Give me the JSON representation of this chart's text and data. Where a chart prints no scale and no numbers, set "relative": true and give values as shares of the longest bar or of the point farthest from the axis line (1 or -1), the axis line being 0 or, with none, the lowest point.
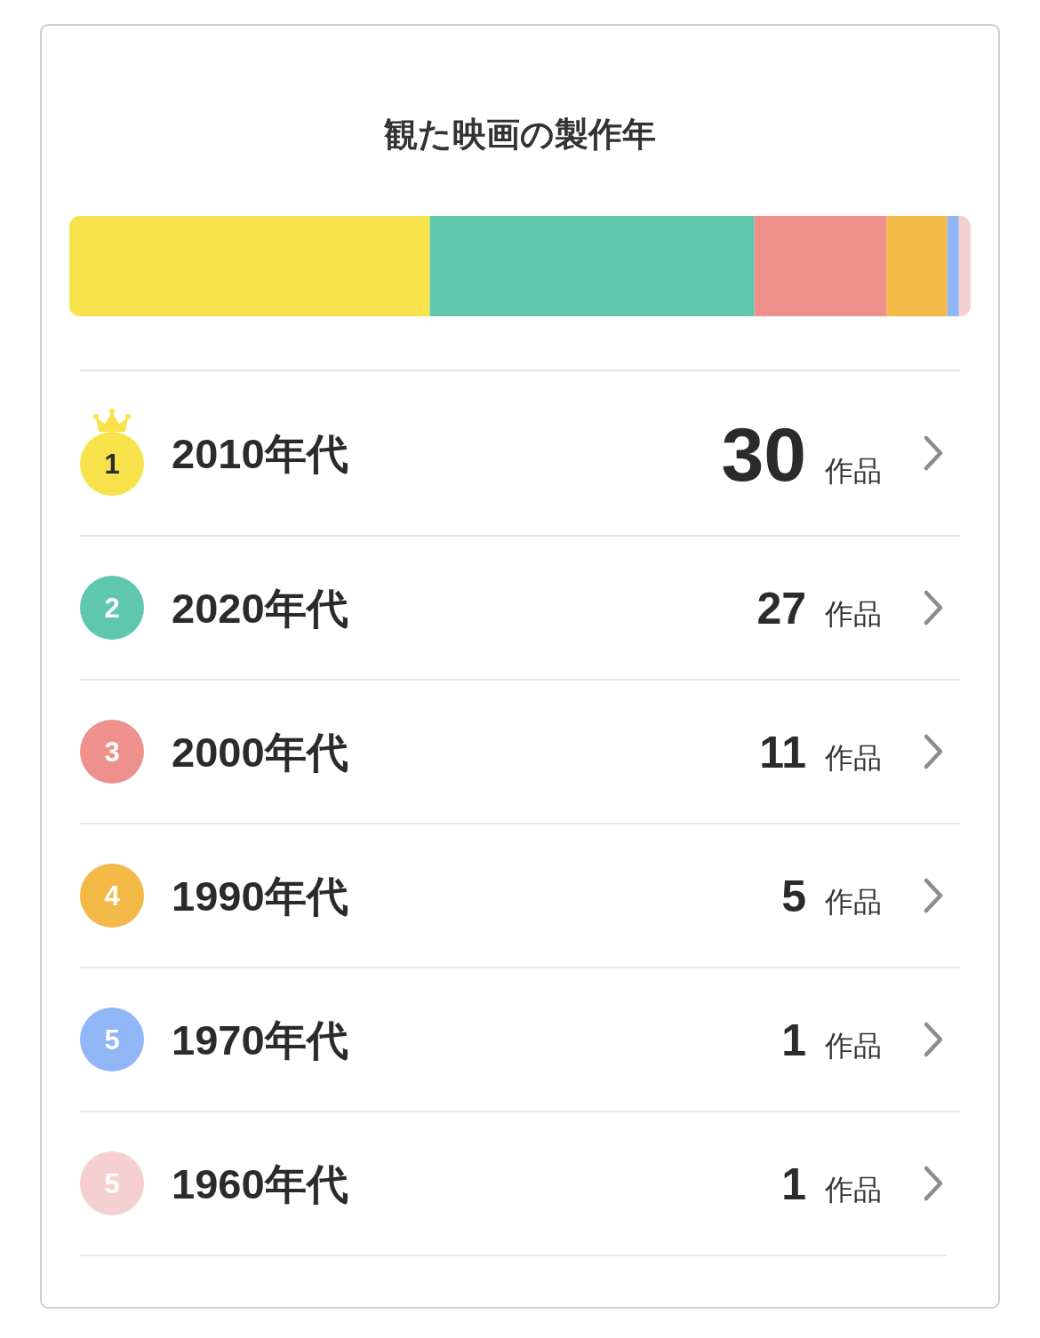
{
  "chart_data": [
    {
      "type": "bar",
      "orientation": "horizontal",
      "stacked": true,
      "relative": true,
      "title": "観た映画の製作年",
      "categories": [
        null
      ],
      "series": [
        {
          "name": "2010年代",
          "color": "#f7e24c",
          "values": [
            0.4
          ]
        },
        {
          "name": "2020年代",
          "color": "#5fc7ae",
          "values": [
            0.36
          ]
        },
        {
          "name": "2000年代",
          "color": "#ee918c",
          "values": [
            0.147
          ]
        },
        {
          "name": "1990年代",
          "color": "#f2b946",
          "values": [
            0.067
          ]
        },
        {
          "name": "1970年代",
          "color": "#90b6f6",
          "values": [
            0.013
          ]
        },
        {
          "name": "1960年代",
          "color": "#f5d0d1",
          "values": [
            0.013
          ]
        }
      ],
      "annotations": [
        "1",
        "2",
        "3",
        "4",
        "5",
        "5"
      ],
      "legend": "bottom"
    },
    {
      "type": "other",
      "annotations": [
        "30 作品",
        "27 作品",
        "11 作品",
        "5 作品",
        "1 作品",
        "1 作品"
      ]
    }
  ]
}
